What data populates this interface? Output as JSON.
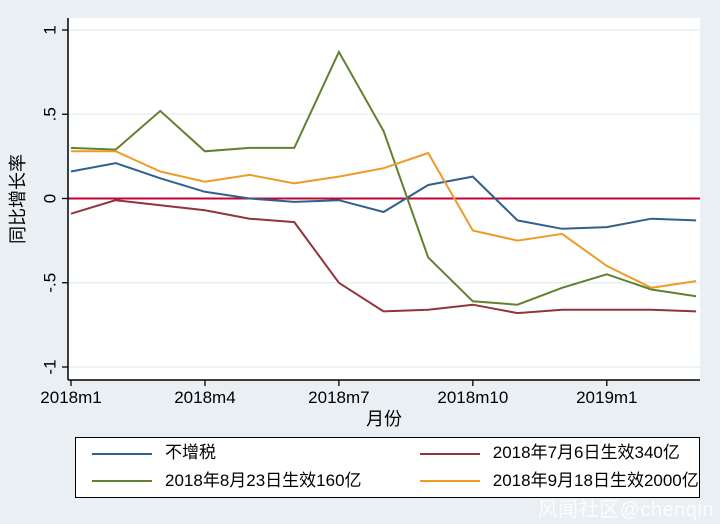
{
  "figure": {
    "background": "#e9eff3",
    "plot_background": "#ffffff",
    "axis_color": "#000000",
    "gridline_color": "#e3edf0"
  },
  "chart_data": {
    "type": "line",
    "title": "",
    "xlabel": "月份",
    "ylabel": "同比增长率",
    "x": [
      "2018m1",
      "2018m2",
      "2018m3",
      "2018m4",
      "2018m5",
      "2018m6",
      "2018m7",
      "2018m8",
      "2018m9",
      "2018m10",
      "2018m11",
      "2018m12",
      "2019m1",
      "2019m2",
      "2019m3"
    ],
    "x_tick_indices": [
      0,
      3,
      6,
      9,
      12
    ],
    "x_tick_labels": [
      "2018m1",
      "2018m4",
      "2018m7",
      "2018m10",
      "2019m1"
    ],
    "y_ticks": [
      {
        "value": 1,
        "label": "1"
      },
      {
        "value": 0.5,
        "label": ".5"
      },
      {
        "value": 0,
        "label": "0"
      },
      {
        "value": -0.5,
        "label": "-.5"
      },
      {
        "value": -1,
        "label": "-1"
      }
    ],
    "ylim": [
      -1,
      1
    ],
    "grid": true,
    "gridline_values": [
      1,
      0.5,
      -0.5,
      -1
    ],
    "refline": {
      "y": 0,
      "color": "#c10534"
    },
    "legend_position": "bottom",
    "series": [
      {
        "name": "不增税",
        "color": "#30618e",
        "values": [
          0.16,
          0.21,
          0.12,
          0.04,
          0.0,
          -0.02,
          -0.01,
          -0.08,
          0.08,
          0.13,
          -0.13,
          -0.18,
          -0.17,
          -0.12,
          -0.13
        ]
      },
      {
        "name": "2018年7月6日生效340亿",
        "color": "#90353b",
        "values": [
          -0.09,
          -0.01,
          -0.04,
          -0.07,
          -0.12,
          -0.14,
          -0.5,
          -0.67,
          -0.66,
          -0.63,
          -0.68,
          -0.66,
          -0.66,
          -0.66,
          -0.67
        ]
      },
      {
        "name": "2018年8月23日生效160亿",
        "color": "#62812f",
        "values": [
          0.3,
          0.29,
          0.52,
          0.28,
          0.3,
          0.3,
          0.87,
          0.4,
          -0.35,
          -0.61,
          -0.63,
          -0.53,
          -0.45,
          -0.54,
          -0.58
        ]
      },
      {
        "name": "2018年9月18日生效2000亿",
        "color": "#ee9c27",
        "values": [
          0.28,
          0.28,
          0.16,
          0.1,
          0.14,
          0.09,
          0.13,
          0.18,
          0.27,
          -0.19,
          -0.25,
          -0.21,
          -0.4,
          -0.53,
          -0.49
        ]
      }
    ]
  },
  "watermark": "风闻社区@chenqin"
}
